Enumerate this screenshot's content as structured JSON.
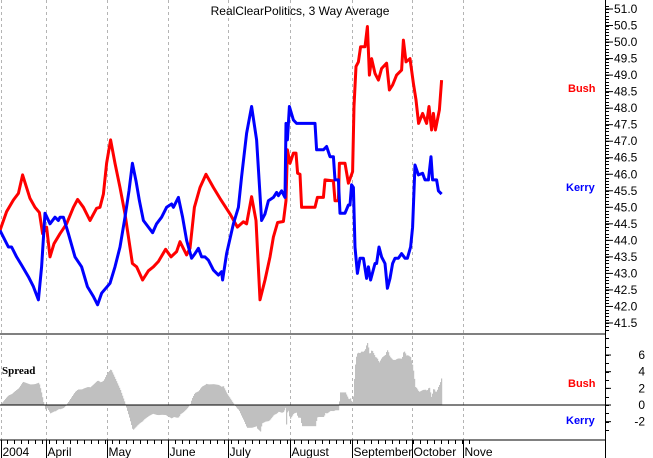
{
  "chart_data": {
    "type": "line",
    "title": "RealClearPolitics, 3 Way Average",
    "x_unit": "days from start of chart (approx. Mar 9, 2004)",
    "xlim": [
      0,
      236
    ],
    "ylim": [
      41.3,
      51.2
    ],
    "yticks": [
      "51.0",
      "50.5",
      "50.0",
      "49.5",
      "49.0",
      "48.5",
      "48.0",
      "47.5",
      "47.0",
      "46.5",
      "46.0",
      "45.5",
      "45.0",
      "44.5",
      "44.0",
      "43.5",
      "43.0",
      "42.5",
      "42.0",
      "41.5"
    ],
    "xticks": [
      {
        "label": "2004",
        "x": 0.5
      },
      {
        "label": "April",
        "x": 23
      },
      {
        "label": "May",
        "x": 53.5
      },
      {
        "label": "June",
        "x": 84
      },
      {
        "label": "July",
        "x": 114
      },
      {
        "label": "August",
        "x": 145
      },
      {
        "label": "September",
        "x": 176
      },
      {
        "label": "October",
        "x": 206
      },
      {
        "label": "Nove",
        "x": 231.5
      }
    ],
    "grid": "vertical dashed at month boundaries",
    "colors": {
      "bush": "#ff0000",
      "kerry": "#0000ff",
      "spread": "#c0c0c0"
    },
    "series": [
      {
        "name": "Bush",
        "color": "#ff0000",
        "points": [
          [
            0,
            44.3
          ],
          [
            3.3,
            44.87
          ],
          [
            6.7,
            45.22
          ],
          [
            9.2,
            45.42
          ],
          [
            11.3,
            45.98
          ],
          [
            15,
            45.27
          ],
          [
            17.5,
            45.0
          ],
          [
            19.7,
            44.84
          ],
          [
            21.3,
            44.2
          ],
          [
            23.3,
            44.4
          ],
          [
            25,
            43.5
          ],
          [
            27,
            43.9
          ],
          [
            30,
            44.2
          ],
          [
            33.3,
            44.5
          ],
          [
            36.7,
            45.0
          ],
          [
            38.8,
            45.24
          ],
          [
            41.7,
            45.0
          ],
          [
            45,
            44.6
          ],
          [
            48.3,
            44.97
          ],
          [
            50,
            45.0
          ],
          [
            51.7,
            45.4
          ],
          [
            53.3,
            46.33
          ],
          [
            55.3,
            47.04
          ],
          [
            57.5,
            46.33
          ],
          [
            60,
            45.6
          ],
          [
            62.5,
            44.8
          ],
          [
            66.2,
            43.3
          ],
          [
            68.3,
            43.2
          ],
          [
            71.3,
            42.8
          ],
          [
            74.2,
            43.08
          ],
          [
            76.7,
            43.2
          ],
          [
            79.2,
            43.36
          ],
          [
            82.8,
            43.73
          ],
          [
            85.5,
            43.5
          ],
          [
            88.3,
            43.66
          ],
          [
            90,
            43.96
          ],
          [
            93.3,
            43.56
          ],
          [
            95,
            43.76
          ],
          [
            97.2,
            45.0
          ],
          [
            100,
            45.6
          ],
          [
            103,
            46.0
          ],
          [
            106.7,
            45.6
          ],
          [
            110,
            45.27
          ],
          [
            115,
            44.8
          ],
          [
            118.7,
            44.4
          ],
          [
            121.7,
            44.56
          ],
          [
            123.3,
            44.5
          ],
          [
            125.8,
            45.32
          ],
          [
            128,
            44.6
          ],
          [
            130,
            42.2
          ],
          [
            132.5,
            42.8
          ],
          [
            135,
            43.5
          ],
          [
            136.7,
            44.1
          ],
          [
            138.8,
            44.54
          ],
          [
            141.7,
            44.57
          ],
          [
            143,
            45.2
          ],
          [
            143.7,
            46.74
          ],
          [
            145,
            46.33
          ],
          [
            146.7,
            46.64
          ],
          [
            148,
            46.64
          ],
          [
            148.8,
            46.03
          ],
          [
            150,
            46.0
          ],
          [
            150.8,
            45.0
          ],
          [
            157.5,
            45.0
          ],
          [
            158.7,
            45.3
          ],
          [
            161.7,
            45.3
          ],
          [
            162.5,
            45.83
          ],
          [
            166.7,
            45.8
          ],
          [
            167.5,
            45.2
          ],
          [
            169.2,
            45.2
          ],
          [
            169.7,
            46.33
          ],
          [
            172.5,
            46.33
          ],
          [
            174.2,
            45.73
          ],
          [
            176.3,
            46.08
          ],
          [
            177,
            48.05
          ],
          [
            178,
            49.26
          ],
          [
            179.2,
            49.4
          ],
          [
            180.3,
            49.86
          ],
          [
            182.5,
            49.86
          ],
          [
            183.7,
            50.47
          ],
          [
            184.7,
            49.0
          ],
          [
            185.8,
            49.5
          ],
          [
            187.5,
            49.05
          ],
          [
            189.2,
            48.85
          ],
          [
            190.8,
            49.2
          ],
          [
            193.3,
            49.36
          ],
          [
            194.7,
            48.55
          ],
          [
            196.3,
            48.7
          ],
          [
            198.3,
            49.0
          ],
          [
            200.8,
            49.15
          ],
          [
            201.7,
            50.06
          ],
          [
            203,
            49.4
          ],
          [
            205,
            49.5
          ],
          [
            206.7,
            48.75
          ],
          [
            208,
            48.25
          ],
          [
            209.3,
            47.54
          ],
          [
            211.3,
            47.84
          ],
          [
            213.3,
            47.54
          ],
          [
            214.5,
            48.05
          ],
          [
            215.8,
            47.34
          ],
          [
            216.7,
            47.84
          ],
          [
            217.7,
            47.34
          ],
          [
            219.7,
            47.95
          ],
          [
            220.8,
            48.85
          ]
        ]
      },
      {
        "name": "Kerry",
        "color": "#0000ff",
        "points": [
          [
            0,
            44.3
          ],
          [
            4.2,
            43.8
          ],
          [
            5.8,
            43.8
          ],
          [
            8.3,
            43.5
          ],
          [
            10.8,
            43.25
          ],
          [
            14.2,
            42.9
          ],
          [
            16.7,
            42.6
          ],
          [
            19.2,
            42.2
          ],
          [
            20.8,
            43.2
          ],
          [
            22.5,
            44.82
          ],
          [
            25,
            44.5
          ],
          [
            27.5,
            44.7
          ],
          [
            29.2,
            44.6
          ],
          [
            30,
            44.7
          ],
          [
            31.7,
            44.7
          ],
          [
            34.2,
            44.2
          ],
          [
            37.5,
            43.5
          ],
          [
            40.8,
            43.2
          ],
          [
            43.7,
            42.6
          ],
          [
            46.7,
            42.3
          ],
          [
            48.8,
            42.05
          ],
          [
            50.8,
            42.4
          ],
          [
            55,
            42.7
          ],
          [
            57.5,
            43.2
          ],
          [
            60,
            43.8
          ],
          [
            62.5,
            44.7
          ],
          [
            64.5,
            45.5
          ],
          [
            66.2,
            46.33
          ],
          [
            68,
            45.8
          ],
          [
            69.7,
            45.2
          ],
          [
            71.7,
            44.6
          ],
          [
            74.2,
            44.4
          ],
          [
            76.3,
            44.23
          ],
          [
            78.3,
            44.5
          ],
          [
            80.8,
            44.7
          ],
          [
            83.3,
            45.0
          ],
          [
            85.8,
            45.1
          ],
          [
            86.7,
            45.0
          ],
          [
            89.2,
            45.3
          ],
          [
            91.3,
            44.7
          ],
          [
            93.3,
            44.0
          ],
          [
            94.7,
            43.7
          ],
          [
            95.8,
            43.46
          ],
          [
            97.5,
            43.6
          ],
          [
            99.2,
            43.76
          ],
          [
            100.8,
            43.5
          ],
          [
            102.5,
            43.5
          ],
          [
            104.2,
            43.4
          ],
          [
            106.7,
            43.1
          ],
          [
            109.2,
            42.95
          ],
          [
            110.8,
            43.05
          ],
          [
            111.3,
            42.8
          ],
          [
            113.3,
            43.6
          ],
          [
            116.7,
            44.5
          ],
          [
            119.2,
            45.0
          ],
          [
            120.8,
            45.93
          ],
          [
            123.3,
            47.24
          ],
          [
            125.8,
            48.05
          ],
          [
            128.3,
            47.04
          ],
          [
            130.8,
            44.6
          ],
          [
            132.5,
            44.8
          ],
          [
            134.2,
            45.2
          ],
          [
            136.7,
            45.3
          ],
          [
            138.3,
            45.45
          ],
          [
            139.2,
            45.35
          ],
          [
            140.8,
            45.5
          ],
          [
            142.5,
            45.3
          ],
          [
            143,
            47.54
          ],
          [
            143.7,
            47.04
          ],
          [
            144.7,
            48.05
          ],
          [
            146.7,
            47.64
          ],
          [
            148.3,
            47.54
          ],
          [
            157.5,
            47.54
          ],
          [
            158.3,
            46.74
          ],
          [
            161.7,
            46.74
          ],
          [
            163.3,
            46.84
          ],
          [
            165,
            46.53
          ],
          [
            166.7,
            46.53
          ],
          [
            167.5,
            45.83
          ],
          [
            169.2,
            45.83
          ],
          [
            170,
            44.82
          ],
          [
            172.5,
            44.82
          ],
          [
            174.2,
            45.07
          ],
          [
            175,
            45.07
          ],
          [
            175.8,
            45.68
          ],
          [
            176.7,
            45.6
          ],
          [
            177.5,
            43.8
          ],
          [
            178.7,
            43.0
          ],
          [
            180,
            43.46
          ],
          [
            181.7,
            43.46
          ],
          [
            183.3,
            42.85
          ],
          [
            184.2,
            43.2
          ],
          [
            185.3,
            42.8
          ],
          [
            187.5,
            43.3
          ],
          [
            188.3,
            43.3
          ],
          [
            189.5,
            43.8
          ],
          [
            190.8,
            43.5
          ],
          [
            192.5,
            43.3
          ],
          [
            193.7,
            42.55
          ],
          [
            195,
            42.85
          ],
          [
            196.3,
            43.3
          ],
          [
            197.5,
            43.46
          ],
          [
            199.2,
            43.46
          ],
          [
            200.8,
            43.6
          ],
          [
            202.5,
            43.46
          ],
          [
            203.7,
            43.46
          ],
          [
            205.3,
            43.8
          ],
          [
            206.3,
            44.4
          ],
          [
            207.5,
            46.28
          ],
          [
            209.2,
            45.98
          ],
          [
            211.3,
            46.03
          ],
          [
            212.5,
            45.83
          ],
          [
            214.2,
            45.83
          ],
          [
            215.5,
            46.53
          ],
          [
            216.3,
            45.83
          ],
          [
            218.3,
            45.83
          ],
          [
            219.2,
            45.5
          ],
          [
            220.8,
            45.4
          ]
        ]
      }
    ],
    "legend": {
      "bush": "Bush",
      "kerry": "Kerry",
      "placement": "right of plot at series ends"
    },
    "spread_panel": {
      "label": "Spread",
      "definition": "Bush minus Kerry",
      "yticks": [
        "6",
        "4",
        "2",
        "0",
        "-2"
      ],
      "ylim": [
        -3.5,
        9.5
      ],
      "positive_label": "Bush",
      "negative_label": "Kerry"
    }
  }
}
